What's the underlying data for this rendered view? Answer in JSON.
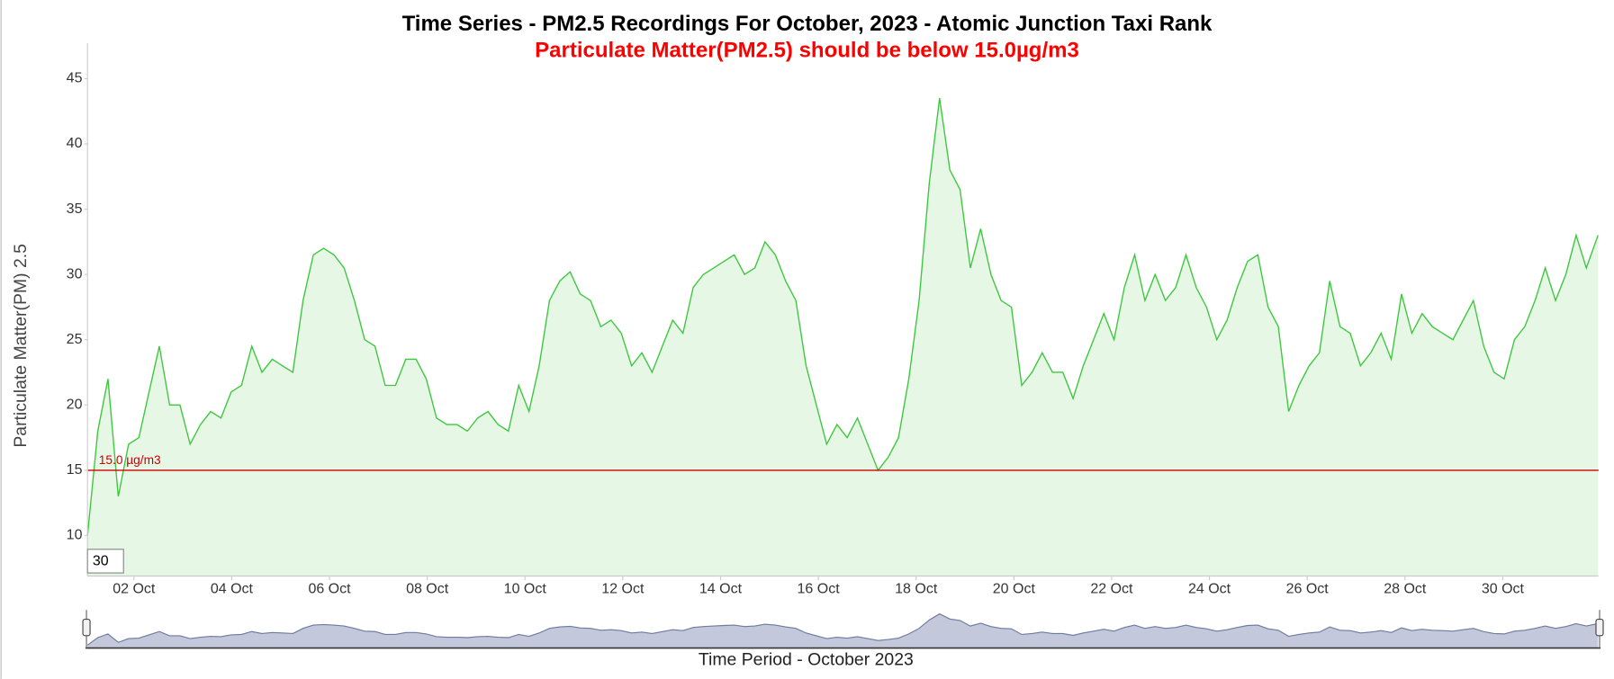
{
  "chart_data": {
    "type": "area",
    "title": "Time Series - PM2.5 Recordings For October, 2023 - Atomic Junction Taxi Rank",
    "subtitle": "Particulate Matter(PM2.5) should be below 15.0µg/m3",
    "ylabel": "Particulate Matter(PM) 2.5",
    "xlabel": "Time Period - October 2023",
    "period_input": "30",
    "threshold": {
      "value": 15,
      "label": "15.0 µg/m3",
      "color": "#cc0000"
    },
    "color": "#3cc83c",
    "fill": "#e6f7e6",
    "navigator_color": "#6d7aa1",
    "xlim": [
      1.05,
      31.96
    ],
    "ylim": [
      6.9,
      47.7
    ],
    "yticks": [
      10,
      15,
      20,
      25,
      30,
      35,
      40,
      45
    ],
    "xticks": [
      {
        "value": 2,
        "label": "02 Oct"
      },
      {
        "value": 4,
        "label": "04 Oct"
      },
      {
        "value": 6,
        "label": "06 Oct"
      },
      {
        "value": 8,
        "label": "08 Oct"
      },
      {
        "value": 10,
        "label": "10 Oct"
      },
      {
        "value": 12,
        "label": "12 Oct"
      },
      {
        "value": 14,
        "label": "14 Oct"
      },
      {
        "value": 16,
        "label": "16 Oct"
      },
      {
        "value": 18,
        "label": "18 Oct"
      },
      {
        "value": 20,
        "label": "20 Oct"
      },
      {
        "value": 22,
        "label": "22 Oct"
      },
      {
        "value": 24,
        "label": "24 Oct"
      },
      {
        "value": 26,
        "label": "26 Oct"
      },
      {
        "value": 28,
        "label": "28 Oct"
      },
      {
        "value": 30,
        "label": "30 Oct"
      }
    ],
    "x": [
      1.05,
      1.26,
      1.47,
      1.68,
      1.89,
      2.1,
      2.31,
      2.52,
      2.73,
      2.94,
      3.15,
      3.36,
      3.57,
      3.78,
      3.99,
      4.2,
      4.41,
      4.62,
      4.83,
      5.04,
      5.25,
      5.46,
      5.67,
      5.88,
      6.09,
      6.3,
      6.51,
      6.72,
      6.93,
      7.14,
      7.35,
      7.56,
      7.77,
      7.98,
      8.19,
      8.4,
      8.61,
      8.82,
      9.03,
      9.24,
      9.45,
      9.66,
      9.87,
      10.08,
      10.29,
      10.5,
      10.71,
      10.92,
      11.13,
      11.34,
      11.55,
      11.76,
      11.97,
      12.18,
      12.39,
      12.6,
      12.81,
      13.02,
      13.23,
      13.44,
      13.65,
      13.86,
      14.07,
      14.28,
      14.49,
      14.7,
      14.91,
      15.12,
      15.33,
      15.54,
      15.75,
      15.96,
      16.17,
      16.38,
      16.59,
      16.8,
      17.01,
      17.22,
      17.43,
      17.64,
      17.85,
      18.06,
      18.27,
      18.48,
      18.69,
      18.9,
      19.11,
      19.32,
      19.53,
      19.74,
      19.95,
      20.16,
      20.37,
      20.58,
      20.79,
      21,
      21.21,
      21.42,
      21.63,
      21.84,
      22.05,
      22.26,
      22.47,
      22.68,
      22.89,
      23.1,
      23.31,
      23.52,
      23.73,
      23.94,
      24.15,
      24.36,
      24.57,
      24.78,
      24.99,
      25.2,
      25.41,
      25.62,
      25.83,
      26.04,
      26.25,
      26.46,
      26.67,
      26.88,
      27.09,
      27.3,
      27.51,
      27.72,
      27.93,
      28.14,
      28.35,
      28.56,
      28.77,
      28.98,
      29.19,
      29.4,
      29.61,
      29.82,
      30.03,
      30.24,
      30.45,
      30.66,
      30.87,
      31.08,
      31.29,
      31.5,
      31.71,
      31.95
    ],
    "values": [
      10,
      18,
      22,
      13,
      17,
      17.5,
      21,
      24.5,
      20,
      20,
      17,
      18.5,
      19.5,
      19,
      21,
      21.5,
      24.5,
      22.5,
      23.5,
      23,
      22.5,
      28,
      31.5,
      32,
      31.5,
      30.5,
      28,
      25,
      24.5,
      21.5,
      21.5,
      23.5,
      23.5,
      22,
      19,
      18.5,
      18.5,
      18,
      19,
      19.5,
      18.5,
      18,
      21.5,
      19.5,
      23,
      28,
      29.5,
      30.2,
      28.5,
      28,
      26,
      26.5,
      25.5,
      23,
      24,
      22.5,
      24.5,
      26.5,
      25.5,
      29,
      30,
      30.5,
      31,
      31.5,
      30,
      30.5,
      32.5,
      31.5,
      29.5,
      28,
      23,
      20,
      17,
      18.5,
      17.5,
      19,
      17,
      15,
      16,
      17.5,
      22,
      28,
      37,
      43.5,
      38,
      36.5,
      30.5,
      33.5,
      30,
      28,
      27.5,
      21.5,
      22.5,
      24,
      22.5,
      22.5,
      20.5,
      23,
      25,
      27,
      25,
      29,
      31.5,
      28,
      30,
      28,
      29,
      31.5,
      29,
      27.5,
      25,
      26.5,
      29,
      31,
      31.5,
      27.5,
      26,
      19.5,
      21.5,
      23,
      24,
      29.5,
      26,
      25.5,
      23,
      24,
      25.5,
      23.5,
      28.5,
      25.5,
      27,
      26,
      25.5,
      25,
      26.5,
      28,
      24.5,
      22.5,
      22,
      25,
      26,
      28,
      30.5,
      28,
      30,
      33,
      30.5,
      33
    ]
  }
}
